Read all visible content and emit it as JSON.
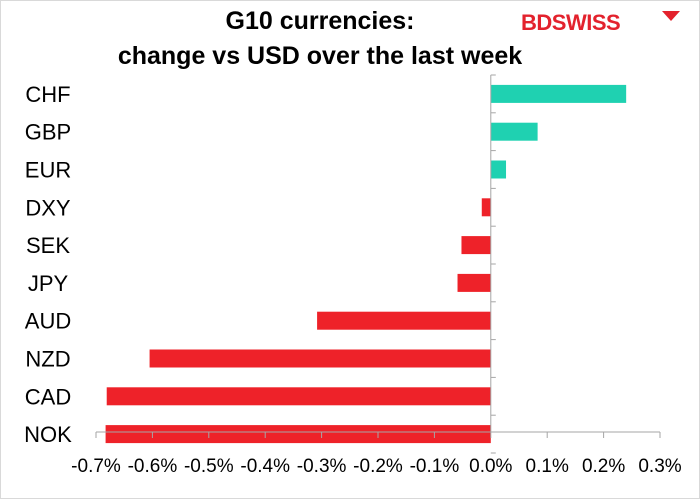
{
  "logo": {
    "text": "BDSWISS",
    "color": "#e3222d"
  },
  "colors": {
    "positive": "#1fd1b1",
    "negative": "#ee2229",
    "axis": "#a6a6a6"
  },
  "chart_data": {
    "type": "bar",
    "orientation": "horizontal",
    "title_line1": "G10 currencies:",
    "title_line2": "change vs USD over the last week",
    "categories": [
      "CHF",
      "GBP",
      "EUR",
      "DXY",
      "SEK",
      "JPY",
      "AUD",
      "NZD",
      "CAD",
      "NOK"
    ],
    "values": [
      0.24,
      0.083,
      0.027,
      -0.016,
      -0.052,
      -0.059,
      -0.308,
      -0.605,
      -0.681,
      -0.683
    ],
    "xlim": [
      -0.7,
      0.3
    ],
    "xticks": [
      -0.7,
      -0.6,
      -0.5,
      -0.4,
      -0.3,
      -0.2,
      -0.1,
      0.0,
      0.1,
      0.2,
      0.3
    ],
    "xtick_labels": [
      "-0.7%",
      "-0.6%",
      "-0.5%",
      "-0.4%",
      "-0.3%",
      "-0.2%",
      "-0.1%",
      "0.0%",
      "0.1%",
      "0.2%",
      "0.3%"
    ],
    "grid": false,
    "legend": "none"
  }
}
